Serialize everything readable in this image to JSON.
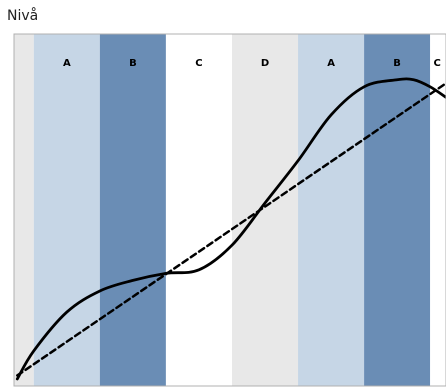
{
  "chart_data": {
    "type": "line",
    "ylabel": "Nivå",
    "xlabel": "",
    "phase_bands": [
      {
        "label": "",
        "color": "#e8e8e8",
        "x_start": -0.3,
        "x_end": 0
      },
      {
        "label": "A",
        "color": "#c6d6e6",
        "x_start": 0,
        "x_end": 1
      },
      {
        "label": "B",
        "color": "#6a8db5",
        "x_start": 1,
        "x_end": 2
      },
      {
        "label": "C",
        "color": "#ffffff",
        "x_start": 2,
        "x_end": 3
      },
      {
        "label": "D",
        "color": "#e8e8e8",
        "x_start": 3,
        "x_end": 4
      },
      {
        "label": "A",
        "color": "#c6d6e6",
        "x_start": 4,
        "x_end": 5
      },
      {
        "label": "B",
        "color": "#6a8db5",
        "x_start": 5,
        "x_end": 6
      },
      {
        "label": "C",
        "color": "#ffffff",
        "x_start": 6,
        "x_end": 6.24
      }
    ],
    "xlim": [
      -0.3,
      6.24
    ],
    "ylim": [
      0,
      1
    ],
    "series": [
      {
        "style": "solid",
        "color": "#000000",
        "x": [
          -0.25,
          0.0,
          0.5,
          1.0,
          1.5,
          2.0,
          2.5,
          3.0,
          3.5,
          4.0,
          4.5,
          5.0,
          5.5,
          5.75,
          6.0,
          6.24
        ],
        "y": [
          0.02,
          0.1,
          0.21,
          0.27,
          0.3,
          0.32,
          0.33,
          0.4,
          0.52,
          0.64,
          0.77,
          0.85,
          0.87,
          0.87,
          0.85,
          0.82
        ]
      },
      {
        "style": "dashed",
        "color": "#000000",
        "x": [
          -0.25,
          6.24
        ],
        "y": [
          0.03,
          0.86
        ]
      }
    ]
  }
}
